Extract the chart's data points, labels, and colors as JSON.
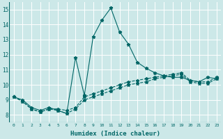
{
  "xlabel": "Humidex (Indice chaleur)",
  "background_color": "#cce8e8",
  "grid_color": "#ffffff",
  "line_color": "#006666",
  "xlim": [
    -0.5,
    23.5
  ],
  "ylim": [
    7.5,
    15.5
  ],
  "xticks": [
    0,
    1,
    2,
    3,
    4,
    5,
    6,
    7,
    8,
    9,
    10,
    11,
    12,
    13,
    14,
    15,
    16,
    17,
    18,
    19,
    20,
    21,
    22,
    23
  ],
  "yticks": [
    8,
    9,
    10,
    11,
    12,
    13,
    14,
    15
  ],
  "line1_x": [
    0,
    1,
    2,
    3,
    4,
    5,
    6,
    7,
    8,
    9,
    10,
    11,
    12,
    13,
    14,
    15,
    16,
    17,
    18,
    19,
    20,
    21,
    22,
    23
  ],
  "line1_y": [
    9.2,
    9.0,
    8.5,
    8.3,
    8.5,
    8.3,
    8.1,
    11.8,
    9.3,
    13.2,
    14.3,
    15.1,
    13.5,
    12.7,
    11.5,
    11.1,
    10.8,
    10.6,
    10.5,
    10.5,
    10.3,
    10.2,
    10.5,
    10.4
  ],
  "line2_x": [
    0,
    1,
    2,
    3,
    4,
    5,
    6,
    7,
    8,
    9,
    10,
    11,
    12,
    13,
    14,
    15,
    16,
    17,
    18,
    19,
    20,
    21,
    22,
    23
  ],
  "line2_y": [
    9.2,
    8.9,
    8.4,
    8.2,
    8.4,
    8.4,
    8.3,
    8.5,
    9.2,
    9.4,
    9.6,
    9.8,
    10.0,
    10.2,
    10.3,
    10.4,
    10.5,
    10.6,
    10.7,
    10.8,
    10.3,
    10.2,
    10.2,
    10.5
  ],
  "line3_x": [
    0,
    1,
    2,
    3,
    4,
    5,
    6,
    7,
    8,
    9,
    10,
    11,
    12,
    13,
    14,
    15,
    16,
    17,
    18,
    19,
    20,
    21,
    22,
    23
  ],
  "line3_y": [
    9.2,
    8.9,
    8.4,
    8.2,
    8.4,
    8.3,
    8.1,
    8.4,
    9.0,
    9.2,
    9.4,
    9.6,
    9.8,
    10.0,
    10.1,
    10.2,
    10.4,
    10.5,
    10.6,
    10.7,
    10.2,
    10.1,
    10.1,
    10.4
  ]
}
